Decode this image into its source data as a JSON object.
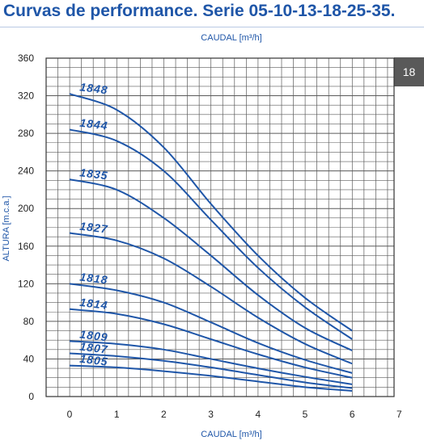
{
  "page": {
    "title": "Curvas de performance. Serie 05-10-13-18-25-35.",
    "series_badge": "18"
  },
  "chart_data": {
    "type": "line",
    "top_axis_label": "CAUDAL [m³/h]",
    "xlabel": "CAUDAL [m³/h]",
    "ylabel": "ALTURA [m.c.a.]",
    "xlim": [
      0,
      7
    ],
    "ylim": [
      0,
      360
    ],
    "x_ticks": [
      0,
      1,
      2,
      3,
      4,
      5,
      6,
      7
    ],
    "y_ticks": [
      0,
      40,
      80,
      120,
      160,
      200,
      240,
      280,
      320,
      360
    ],
    "grid": true,
    "colors": {
      "curve": "#1f56a8",
      "grid": "#5a5a5a",
      "badge": "#595959"
    },
    "series": [
      {
        "name": "1848",
        "x": [
          0,
          1,
          2,
          3,
          4,
          5,
          6
        ],
        "y": [
          322,
          305,
          265,
          205,
          150,
          105,
          70
        ]
      },
      {
        "name": "1844",
        "x": [
          0,
          1,
          2,
          3,
          4,
          5,
          6
        ],
        "y": [
          284,
          272,
          240,
          188,
          137,
          95,
          61
        ]
      },
      {
        "name": "1835",
        "x": [
          0,
          1,
          2,
          3,
          4,
          5,
          6
        ],
        "y": [
          231,
          220,
          190,
          150,
          108,
          73,
          49
        ]
      },
      {
        "name": "1827",
        "x": [
          0,
          1,
          2,
          3,
          4,
          5,
          6
        ],
        "y": [
          174,
          166,
          147,
          117,
          84,
          56,
          35
        ]
      },
      {
        "name": "1818",
        "x": [
          0,
          1,
          2,
          3,
          4,
          5,
          6
        ],
        "y": [
          120,
          113,
          100,
          79,
          57,
          39,
          25
        ]
      },
      {
        "name": "1814",
        "x": [
          0,
          1,
          2,
          3,
          4,
          5,
          6
        ],
        "y": [
          93,
          88,
          77,
          61,
          45,
          31,
          20
        ]
      },
      {
        "name": "1809",
        "x": [
          0,
          1,
          2,
          3,
          4,
          5,
          6
        ],
        "y": [
          59,
          56,
          50,
          40,
          30,
          21,
          13
        ]
      },
      {
        "name": "1807",
        "x": [
          0,
          1,
          2,
          3,
          4,
          5,
          6
        ],
        "y": [
          46,
          43,
          38,
          31,
          23,
          15,
          9
        ]
      },
      {
        "name": "1805",
        "x": [
          0,
          1,
          2,
          3,
          4,
          5,
          6
        ],
        "y": [
          33,
          31,
          27,
          22,
          16,
          10,
          6
        ]
      }
    ]
  }
}
